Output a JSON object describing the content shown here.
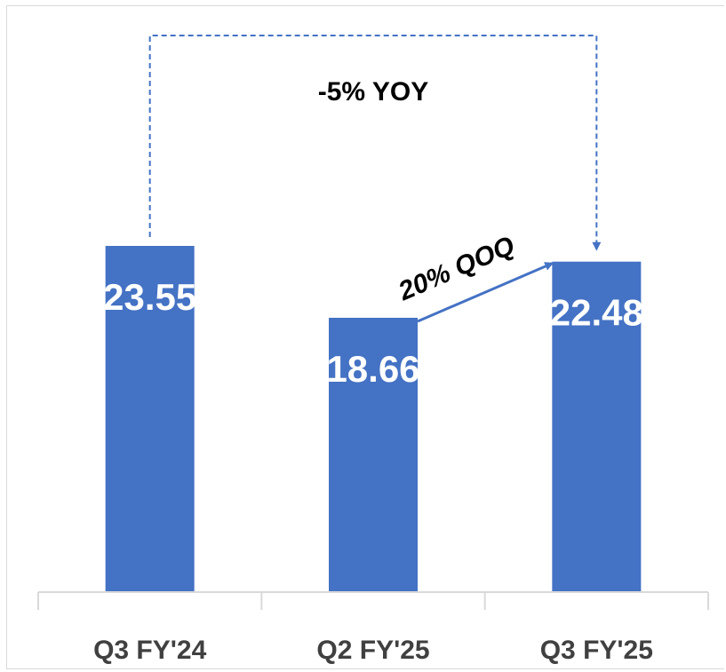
{
  "chart_data": {
    "type": "bar",
    "categories": [
      "Q3 FY'24",
      "Q2 FY'25",
      "Q3 FY'25"
    ],
    "values": [
      23.55,
      18.66,
      22.48
    ],
    "value_labels": [
      "23.55",
      "18.66",
      "22.48"
    ],
    "ylim": [
      0,
      26
    ],
    "grid": false,
    "bar_color": "#4472c4",
    "axis_color": "#d9d9d9",
    "annotations": {
      "yoy": "-5% YOY",
      "qoq": "20% QOQ"
    }
  }
}
